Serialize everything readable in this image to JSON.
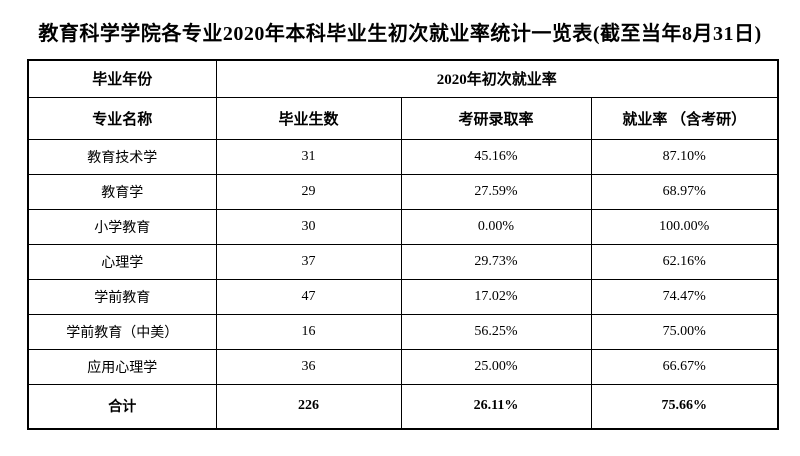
{
  "page": {
    "title": "教育科学学院各专业2020年本科毕业生初次就业率统计一览表(截至当年8月31日)"
  },
  "table": {
    "header_row1": {
      "year_label": "毕业年份",
      "group_label": "2020年初次就业率"
    },
    "header_row2": {
      "major": "专业名称",
      "graduates": "毕业生数",
      "postgrad_rate": "考研录取率",
      "employment_rate": "就业率 （含考研）"
    },
    "rows": [
      {
        "major": "教育技术学",
        "graduates": "31",
        "postgrad_rate": "45.16%",
        "employment_rate": "87.10%",
        "is_total": false
      },
      {
        "major": "教育学",
        "graduates": "29",
        "postgrad_rate": "27.59%",
        "employment_rate": "68.97%",
        "is_total": false
      },
      {
        "major": "小学教育",
        "graduates": "30",
        "postgrad_rate": "0.00%",
        "employment_rate": "100.00%",
        "is_total": false
      },
      {
        "major": "心理学",
        "graduates": "37",
        "postgrad_rate": "29.73%",
        "employment_rate": "62.16%",
        "is_total": false
      },
      {
        "major": "学前教育",
        "graduates": "47",
        "postgrad_rate": "17.02%",
        "employment_rate": "74.47%",
        "is_total": false
      },
      {
        "major": "学前教育（中美）",
        "graduates": "16",
        "postgrad_rate": "56.25%",
        "employment_rate": "75.00%",
        "is_total": false
      },
      {
        "major": "应用心理学",
        "graduates": "36",
        "postgrad_rate": "25.00%",
        "employment_rate": "66.67%",
        "is_total": false
      },
      {
        "major": "合计",
        "graduates": "226",
        "postgrad_rate": "26.11%",
        "employment_rate": "75.66%",
        "is_total": true
      }
    ]
  },
  "colors": {
    "text": "#000000",
    "background": "#ffffff",
    "border": "#000000"
  }
}
